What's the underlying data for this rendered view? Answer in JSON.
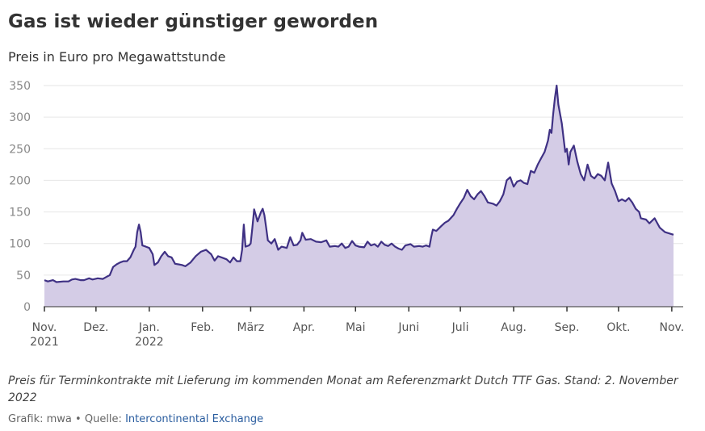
{
  "chart_data": {
    "type": "area",
    "title": "Gas ist wieder günstiger geworden",
    "subtitle": "Preis in Euro pro Megawattstunde",
    "note": "Preis für Terminkontrakte mit Lieferung im kommenden Monat am Referenzmarkt Dutch TTF Gas. Stand: 2. November 2022",
    "credit": "Grafik: mwa",
    "separator": "•",
    "source_label": "Quelle:",
    "source_name": "Intercontinental Exchange",
    "ylim": [
      0,
      350
    ],
    "yticks": [
      0,
      50,
      100,
      150,
      200,
      250,
      300,
      350
    ],
    "grid": true,
    "legend": "none",
    "x_start": "2021-11-01",
    "x_end": "2022-11-02",
    "xticks": [
      {
        "date": "2021-11-01",
        "line1": "Nov.",
        "line2": "2021"
      },
      {
        "date": "2021-12-01",
        "line1": "Dez.",
        "line2": ""
      },
      {
        "date": "2022-01-01",
        "line1": "Jan.",
        "line2": "2022"
      },
      {
        "date": "2022-02-01",
        "line1": "Feb.",
        "line2": ""
      },
      {
        "date": "2022-03-01",
        "line1": "März",
        "line2": ""
      },
      {
        "date": "2022-04-01",
        "line1": "Apr.",
        "line2": ""
      },
      {
        "date": "2022-05-01",
        "line1": "Mai",
        "line2": ""
      },
      {
        "date": "2022-06-01",
        "line1": "Juni",
        "line2": ""
      },
      {
        "date": "2022-07-01",
        "line1": "Juli",
        "line2": ""
      },
      {
        "date": "2022-08-01",
        "line1": "Aug.",
        "line2": ""
      },
      {
        "date": "2022-09-01",
        "line1": "Sep.",
        "line2": ""
      },
      {
        "date": "2022-10-01",
        "line1": "Okt.",
        "line2": ""
      },
      {
        "date": "2022-11-01",
        "line1": "Nov.",
        "line2": ""
      }
    ],
    "colors": {
      "line": "#3f3184",
      "fill": "#d4cce6",
      "grid": "#e6e6e6",
      "axis": "#333333"
    },
    "points": [
      [
        "2021-11-01",
        42
      ],
      [
        "2021-11-03",
        40
      ],
      [
        "2021-11-06",
        42
      ],
      [
        "2021-11-08",
        39
      ],
      [
        "2021-11-12",
        40
      ],
      [
        "2021-11-15",
        40
      ],
      [
        "2021-11-17",
        43
      ],
      [
        "2021-11-19",
        44
      ],
      [
        "2021-11-22",
        42
      ],
      [
        "2021-11-24",
        42
      ],
      [
        "2021-11-27",
        45
      ],
      [
        "2021-11-29",
        43
      ],
      [
        "2021-12-02",
        45
      ],
      [
        "2021-12-05",
        44
      ],
      [
        "2021-12-07",
        47
      ],
      [
        "2021-12-09",
        50
      ],
      [
        "2021-12-11",
        63
      ],
      [
        "2021-12-13",
        67
      ],
      [
        "2021-12-15",
        70
      ],
      [
        "2021-12-17",
        72
      ],
      [
        "2021-12-19",
        72
      ],
      [
        "2021-12-21",
        78
      ],
      [
        "2021-12-23",
        90
      ],
      [
        "2021-12-24",
        95
      ],
      [
        "2021-12-25",
        118
      ],
      [
        "2021-12-26",
        130
      ],
      [
        "2021-12-27",
        118
      ],
      [
        "2021-12-28",
        97
      ],
      [
        "2021-12-30",
        95
      ],
      [
        "2022-01-01",
        93
      ],
      [
        "2022-01-03",
        83
      ],
      [
        "2022-01-04",
        66
      ],
      [
        "2022-01-06",
        70
      ],
      [
        "2022-01-08",
        80
      ],
      [
        "2022-01-10",
        87
      ],
      [
        "2022-01-12",
        80
      ],
      [
        "2022-01-14",
        78
      ],
      [
        "2022-01-16",
        68
      ],
      [
        "2022-01-18",
        67
      ],
      [
        "2022-01-20",
        66
      ],
      [
        "2022-01-22",
        64
      ],
      [
        "2022-01-25",
        70
      ],
      [
        "2022-01-28",
        80
      ],
      [
        "2022-01-31",
        87
      ],
      [
        "2022-02-03",
        90
      ],
      [
        "2022-02-06",
        83
      ],
      [
        "2022-02-08",
        73
      ],
      [
        "2022-02-10",
        80
      ],
      [
        "2022-02-13",
        77
      ],
      [
        "2022-02-15",
        75
      ],
      [
        "2022-02-17",
        70
      ],
      [
        "2022-02-19",
        78
      ],
      [
        "2022-02-21",
        72
      ],
      [
        "2022-02-23",
        72
      ],
      [
        "2022-02-24",
        90
      ],
      [
        "2022-02-25",
        130
      ],
      [
        "2022-02-26",
        95
      ],
      [
        "2022-02-28",
        97
      ],
      [
        "2022-03-01",
        100
      ],
      [
        "2022-03-02",
        125
      ],
      [
        "2022-03-03",
        154
      ],
      [
        "2022-03-04",
        145
      ],
      [
        "2022-03-05",
        135
      ],
      [
        "2022-03-07",
        150
      ],
      [
        "2022-03-08",
        155
      ],
      [
        "2022-03-09",
        145
      ],
      [
        "2022-03-10",
        125
      ],
      [
        "2022-03-11",
        105
      ],
      [
        "2022-03-13",
        100
      ],
      [
        "2022-03-15",
        107
      ],
      [
        "2022-03-17",
        90
      ],
      [
        "2022-03-19",
        95
      ],
      [
        "2022-03-22",
        93
      ],
      [
        "2022-03-24",
        110
      ],
      [
        "2022-03-26",
        97
      ],
      [
        "2022-03-28",
        98
      ],
      [
        "2022-03-30",
        105
      ],
      [
        "2022-03-31",
        117
      ],
      [
        "2022-04-02",
        106
      ],
      [
        "2022-04-05",
        107
      ],
      [
        "2022-04-08",
        103
      ],
      [
        "2022-04-11",
        102
      ],
      [
        "2022-04-14",
        105
      ],
      [
        "2022-04-16",
        95
      ],
      [
        "2022-04-19",
        96
      ],
      [
        "2022-04-21",
        95
      ],
      [
        "2022-04-23",
        100
      ],
      [
        "2022-04-25",
        93
      ],
      [
        "2022-04-27",
        95
      ],
      [
        "2022-04-29",
        104
      ],
      [
        "2022-05-01",
        97
      ],
      [
        "2022-05-03",
        95
      ],
      [
        "2022-05-06",
        94
      ],
      [
        "2022-05-08",
        103
      ],
      [
        "2022-05-10",
        97
      ],
      [
        "2022-05-12",
        99
      ],
      [
        "2022-05-14",
        95
      ],
      [
        "2022-05-16",
        103
      ],
      [
        "2022-05-18",
        98
      ],
      [
        "2022-05-20",
        96
      ],
      [
        "2022-05-22",
        100
      ],
      [
        "2022-05-24",
        95
      ],
      [
        "2022-05-26",
        92
      ],
      [
        "2022-05-28",
        90
      ],
      [
        "2022-05-30",
        97
      ],
      [
        "2022-06-02",
        99
      ],
      [
        "2022-06-04",
        95
      ],
      [
        "2022-06-07",
        96
      ],
      [
        "2022-06-09",
        95
      ],
      [
        "2022-06-11",
        97
      ],
      [
        "2022-06-13",
        95
      ],
      [
        "2022-06-14",
        110
      ],
      [
        "2022-06-15",
        122
      ],
      [
        "2022-06-17",
        120
      ],
      [
        "2022-06-20",
        128
      ],
      [
        "2022-06-22",
        133
      ],
      [
        "2022-06-24",
        136
      ],
      [
        "2022-06-27",
        145
      ],
      [
        "2022-06-29",
        155
      ],
      [
        "2022-07-01",
        164
      ],
      [
        "2022-07-03",
        172
      ],
      [
        "2022-07-05",
        185
      ],
      [
        "2022-07-07",
        175
      ],
      [
        "2022-07-09",
        170
      ],
      [
        "2022-07-11",
        178
      ],
      [
        "2022-07-13",
        183
      ],
      [
        "2022-07-15",
        175
      ],
      [
        "2022-07-17",
        165
      ],
      [
        "2022-07-20",
        163
      ],
      [
        "2022-07-22",
        160
      ],
      [
        "2022-07-24",
        167
      ],
      [
        "2022-07-26",
        178
      ],
      [
        "2022-07-28",
        200
      ],
      [
        "2022-07-30",
        205
      ],
      [
        "2022-08-01",
        190
      ],
      [
        "2022-08-03",
        198
      ],
      [
        "2022-08-05",
        200
      ],
      [
        "2022-08-07",
        196
      ],
      [
        "2022-08-09",
        194
      ],
      [
        "2022-08-11",
        215
      ],
      [
        "2022-08-13",
        212
      ],
      [
        "2022-08-15",
        225
      ],
      [
        "2022-08-17",
        235
      ],
      [
        "2022-08-19",
        245
      ],
      [
        "2022-08-21",
        263
      ],
      [
        "2022-08-22",
        280
      ],
      [
        "2022-08-23",
        275
      ],
      [
        "2022-08-24",
        305
      ],
      [
        "2022-08-25",
        330
      ],
      [
        "2022-08-26",
        350
      ],
      [
        "2022-08-27",
        320
      ],
      [
        "2022-08-29",
        290
      ],
      [
        "2022-08-31",
        245
      ],
      [
        "2022-09-01",
        250
      ],
      [
        "2022-09-02",
        225
      ],
      [
        "2022-09-03",
        245
      ],
      [
        "2022-09-05",
        255
      ],
      [
        "2022-09-07",
        230
      ],
      [
        "2022-09-09",
        210
      ],
      [
        "2022-09-11",
        200
      ],
      [
        "2022-09-13",
        225
      ],
      [
        "2022-09-15",
        207
      ],
      [
        "2022-09-17",
        203
      ],
      [
        "2022-09-19",
        210
      ],
      [
        "2022-09-21",
        207
      ],
      [
        "2022-09-23",
        200
      ],
      [
        "2022-09-25",
        228
      ],
      [
        "2022-09-27",
        195
      ],
      [
        "2022-09-29",
        183
      ],
      [
        "2022-10-01",
        167
      ],
      [
        "2022-10-03",
        170
      ],
      [
        "2022-10-05",
        167
      ],
      [
        "2022-10-07",
        172
      ],
      [
        "2022-10-09",
        165
      ],
      [
        "2022-10-11",
        155
      ],
      [
        "2022-10-13",
        150
      ],
      [
        "2022-10-14",
        140
      ],
      [
        "2022-10-17",
        138
      ],
      [
        "2022-10-19",
        132
      ],
      [
        "2022-10-22",
        140
      ],
      [
        "2022-10-25",
        125
      ],
      [
        "2022-10-28",
        118
      ],
      [
        "2022-11-02",
        114
      ]
    ]
  }
}
